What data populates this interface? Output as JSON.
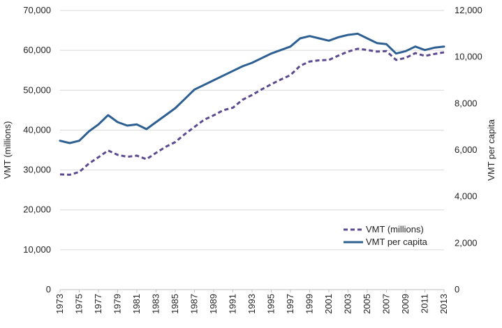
{
  "chart_data": {
    "type": "line",
    "title": "",
    "xlabel": "",
    "ylabel": "VMT (millions)",
    "y2label": "VMT per capita",
    "ylim": [
      0,
      70000
    ],
    "y2lim": [
      0,
      12000
    ],
    "yticks": [
      "0",
      "10,000",
      "20,000",
      "30,000",
      "40,000",
      "50,000",
      "60,000",
      "70,000"
    ],
    "y2ticks": [
      "0",
      "2,000",
      "4,000",
      "6,000",
      "8,000",
      "10,000",
      "12,000"
    ],
    "xticks": [
      "1973",
      "1975",
      "1977",
      "1979",
      "1981",
      "1983",
      "1985",
      "1987",
      "1989",
      "1991",
      "1993",
      "1995",
      "1997",
      "1999",
      "2001",
      "2003",
      "2005",
      "2007",
      "2009",
      "2011",
      "2013"
    ],
    "grid": true,
    "legend_position": "bottom-right",
    "x": [
      1973,
      1974,
      1975,
      1976,
      1977,
      1978,
      1979,
      1980,
      1981,
      1982,
      1983,
      1984,
      1985,
      1986,
      1987,
      1988,
      1989,
      1990,
      1991,
      1992,
      1993,
      1994,
      1995,
      1996,
      1997,
      1998,
      1999,
      2000,
      2001,
      2002,
      2003,
      2004,
      2005,
      2006,
      2007,
      2008,
      2009,
      2010,
      2011,
      2012,
      2013
    ],
    "series": [
      {
        "name": "VMT (millions)",
        "axis": "left",
        "style": "dashed",
        "color": "#5b4a8f",
        "values": [
          28900,
          28800,
          29500,
          31600,
          33200,
          34900,
          33800,
          33300,
          33600,
          32700,
          34300,
          35800,
          37000,
          39000,
          40800,
          42600,
          43700,
          45000,
          45600,
          47600,
          48800,
          50200,
          51500,
          52700,
          53800,
          56100,
          57200,
          57500,
          57600,
          58700,
          59700,
          60400,
          60100,
          59700,
          59800,
          57600,
          58100,
          59300,
          58600,
          59100,
          59500
        ]
      },
      {
        "name": "VMT per capita",
        "axis": "right",
        "style": "solid",
        "color": "#2e5f92",
        "values": [
          6400,
          6300,
          6400,
          6800,
          7100,
          7500,
          7200,
          7050,
          7100,
          6900,
          7200,
          7500,
          7800,
          8200,
          8600,
          8800,
          9000,
          9200,
          9400,
          9600,
          9750,
          9950,
          10150,
          10300,
          10450,
          10800,
          10900,
          10800,
          10700,
          10850,
          10950,
          11000,
          10800,
          10600,
          10550,
          10150,
          10250,
          10450,
          10300,
          10400,
          10450
        ]
      }
    ]
  }
}
